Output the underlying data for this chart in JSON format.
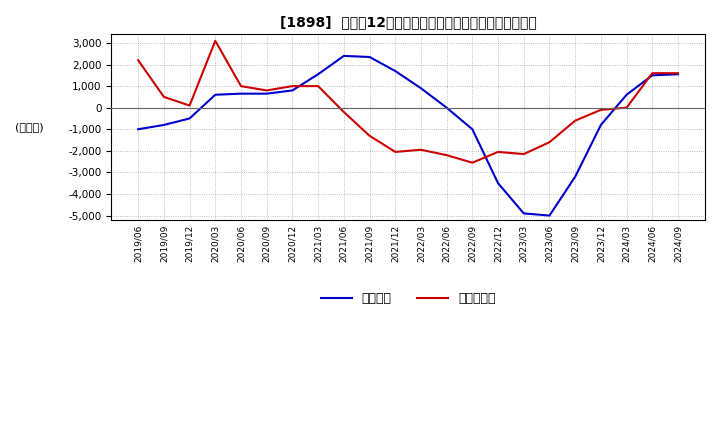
{
  "title": "[1898]  利益だ12か月移動合計の対前年同期増減額の推移",
  "ylabel": "(百万円)",
  "ylim": [
    -5200,
    3400
  ],
  "yticks": [
    -5000,
    -4000,
    -3000,
    -2000,
    -1000,
    0,
    1000,
    2000,
    3000
  ],
  "legend_labels": [
    "経常利益",
    "当期純利益"
  ],
  "line_colors": [
    "#0000cc",
    "#cc0000"
  ],
  "plot_bg": "#ffffff",
  "fig_bg": "#ffffff",
  "dates": [
    "2019/06",
    "2019/09",
    "2019/12",
    "2020/03",
    "2020/06",
    "2020/09",
    "2020/12",
    "2021/03",
    "2021/06",
    "2021/09",
    "2021/12",
    "2022/03",
    "2022/06",
    "2022/09",
    "2022/12",
    "2023/03",
    "2023/06",
    "2023/09",
    "2023/12",
    "2024/03",
    "2024/06",
    "2024/09"
  ],
  "keijo_rieki": [
    -1000,
    -800,
    -500,
    600,
    650,
    650,
    800,
    1550,
    2400,
    2350,
    1700,
    900,
    0,
    -1000,
    -3500,
    -4900,
    -5000,
    -3200,
    -800,
    600,
    1500,
    1550
  ],
  "touki_jun_rieki": [
    2200,
    500,
    100,
    3100,
    1000,
    800,
    1000,
    1000,
    -200,
    -1300,
    -2050,
    -1950,
    -2200,
    -2550,
    -2050,
    -2150,
    -1600,
    -600,
    -100,
    0,
    1600,
    1600
  ]
}
